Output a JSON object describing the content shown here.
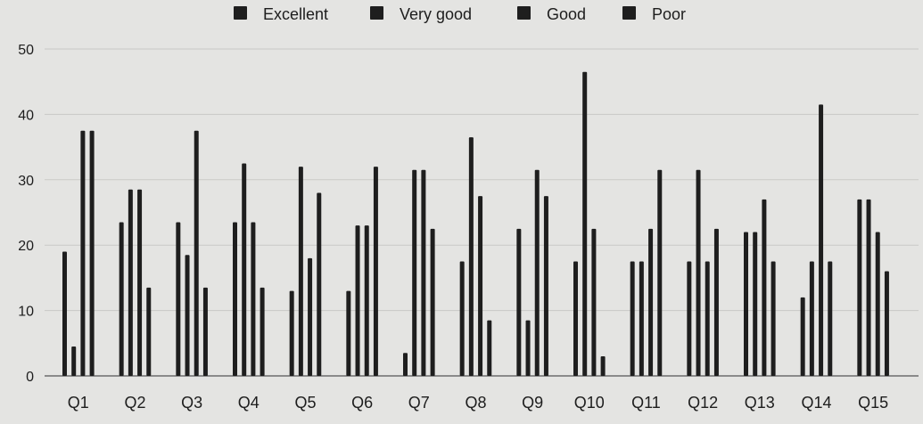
{
  "chart_data": {
    "type": "bar",
    "title": "",
    "xlabel": "",
    "ylabel": "",
    "ylim": [
      0,
      50
    ],
    "yticks": [
      "0",
      "10",
      "20",
      "30",
      "40",
      "50"
    ],
    "grid": true,
    "legend_position": "top-center",
    "categories": [
      "Q1",
      "Q2",
      "Q3",
      "Q4",
      "Q5",
      "Q6",
      "Q7",
      "Q8",
      "Q9",
      "Q10",
      "Q11",
      "Q12",
      "Q13",
      "Q14",
      "Q15"
    ],
    "series": [
      {
        "name": "Excellent",
        "color": "#1e1e1e",
        "values": [
          19,
          23.5,
          23.5,
          23.5,
          13,
          13,
          3.5,
          17.5,
          22.5,
          17.5,
          17.5,
          17.5,
          22,
          12,
          27
        ]
      },
      {
        "name": "Very good",
        "color": "#1e1e1e",
        "values": [
          4.5,
          28.5,
          18.5,
          32.5,
          32,
          23,
          31.5,
          36.5,
          8.5,
          46.5,
          17.5,
          31.5,
          22,
          17.5,
          27
        ]
      },
      {
        "name": "Good",
        "color": "#1e1e1e",
        "values": [
          37.5,
          28.5,
          37.5,
          23.5,
          18,
          23,
          31.5,
          27.5,
          31.5,
          22.5,
          22.5,
          17.5,
          27,
          41.5,
          22
        ]
      },
      {
        "name": "Poor",
        "color": "#1e1e1e",
        "values": [
          37.5,
          13.5,
          13.5,
          13.5,
          28,
          32,
          22.5,
          8.5,
          27.5,
          3,
          31.5,
          22.5,
          17.5,
          17.5,
          16
        ]
      }
    ]
  }
}
